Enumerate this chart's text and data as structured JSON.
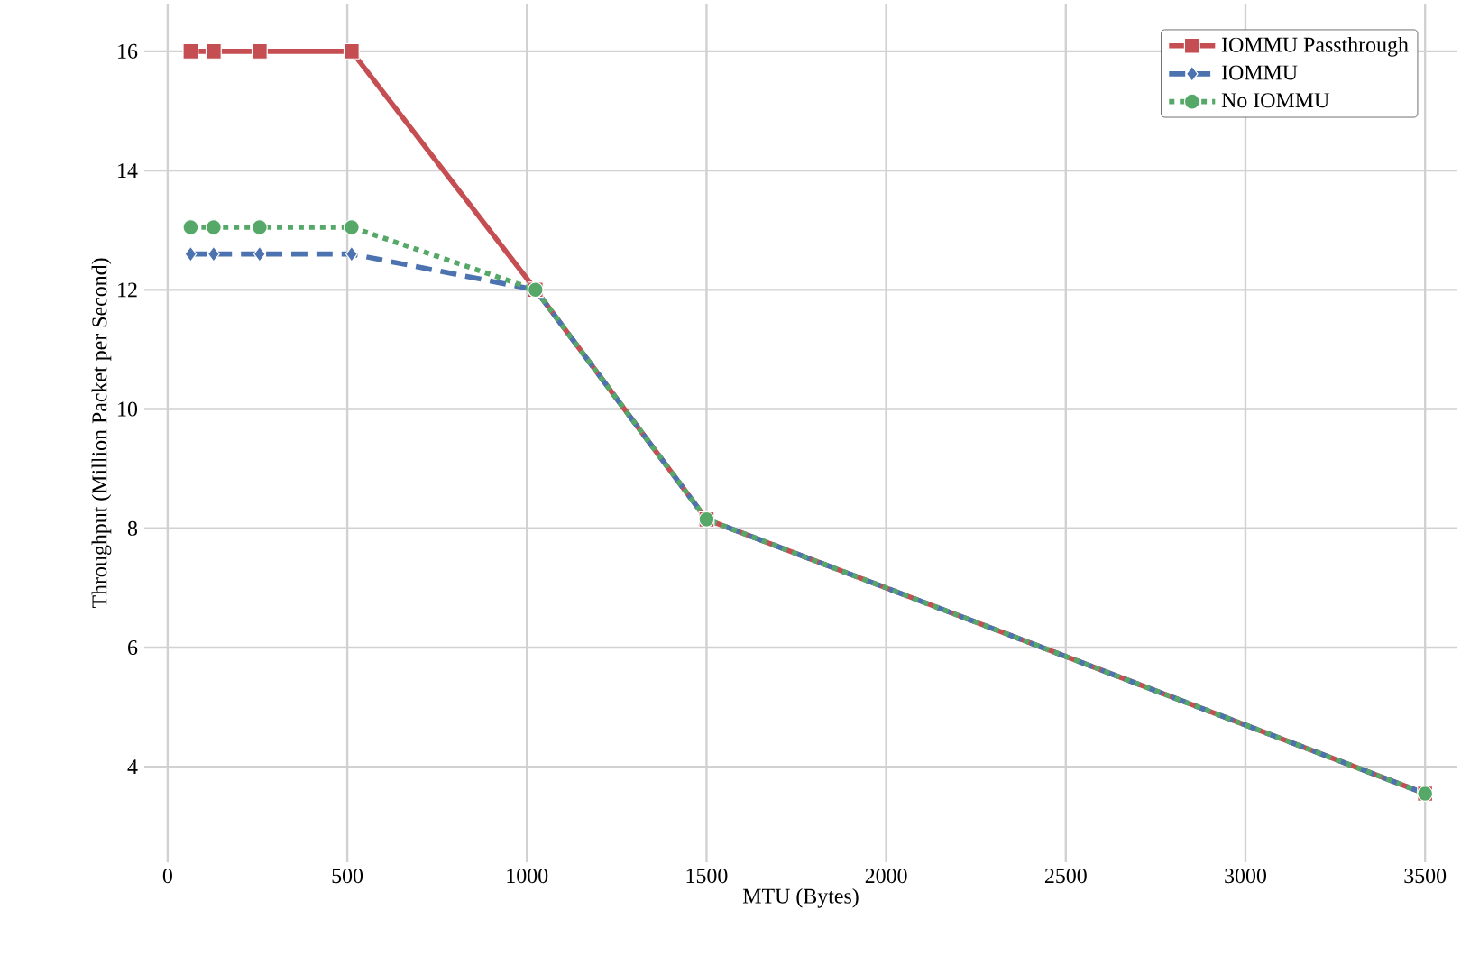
{
  "chart_data": {
    "type": "line",
    "xlabel": "MTU (Bytes)",
    "ylabel": "Throughput (Million Packet per Second)",
    "xlim": [
      -65,
      3590
    ],
    "ylim": [
      2.4,
      16.8
    ],
    "xticks": [
      0,
      500,
      1000,
      1500,
      2000,
      2500,
      3000,
      3500
    ],
    "yticks": [
      4,
      6,
      8,
      10,
      12,
      14,
      16
    ],
    "grid": true,
    "legend": "top right",
    "series": [
      {
        "name": "IOMMU Passthrough",
        "color": "#c44e52",
        "marker": "square",
        "line_style": "solid",
        "x": [
          64,
          128,
          256,
          512,
          1024,
          1500,
          3500
        ],
        "values": [
          16,
          16,
          16,
          16,
          12,
          8.15,
          3.55
        ]
      },
      {
        "name": "IOMMU",
        "color": "#4c72b0",
        "marker": "diamond",
        "line_style": "dashed",
        "x": [
          64,
          128,
          256,
          512,
          1024,
          1500,
          3500
        ],
        "values": [
          12.6,
          12.6,
          12.6,
          12.6,
          12,
          8.15,
          3.55
        ]
      },
      {
        "name": "No IOMMU",
        "color": "#55a868",
        "marker": "circle",
        "line_style": "dotted",
        "x": [
          64,
          128,
          256,
          512,
          1024,
          1500,
          3500
        ],
        "values": [
          13.05,
          13.05,
          13.05,
          13.05,
          12,
          8.15,
          3.55
        ]
      }
    ]
  }
}
